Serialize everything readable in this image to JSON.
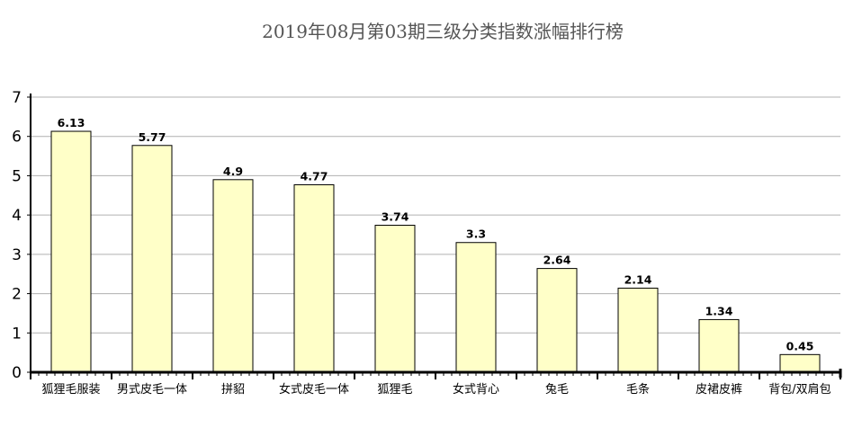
{
  "chart_data": {
    "type": "bar",
    "title": "2019年08月第03期三级分类指数涨幅排行榜",
    "xlabel": "",
    "ylabel": "",
    "categories": [
      "狐狸毛服装",
      "男式皮毛一体",
      "拼貂",
      "女式皮毛一体",
      "狐狸毛",
      "女式背心",
      "兔毛",
      "毛条",
      "皮裙皮裤",
      "背包/双肩包"
    ],
    "values": [
      6.13,
      5.77,
      4.9,
      4.77,
      3.74,
      3.3,
      2.64,
      2.14,
      1.34,
      0.45
    ],
    "value_labels": [
      "6.13",
      "5.77",
      "4.9",
      "4.77",
      "3.74",
      "3.3",
      "2.64",
      "2.14",
      "1.34",
      "0.45"
    ],
    "ylim": [
      0,
      7
    ],
    "yticks": [
      "0",
      "1",
      "2",
      "3",
      "4",
      "5",
      "6",
      "7"
    ],
    "grid": true,
    "colors": {
      "bar_fill": "#ffffc8",
      "bar_stroke": "#000000",
      "grid": "#b0b0b0",
      "axis": "#000000"
    }
  }
}
